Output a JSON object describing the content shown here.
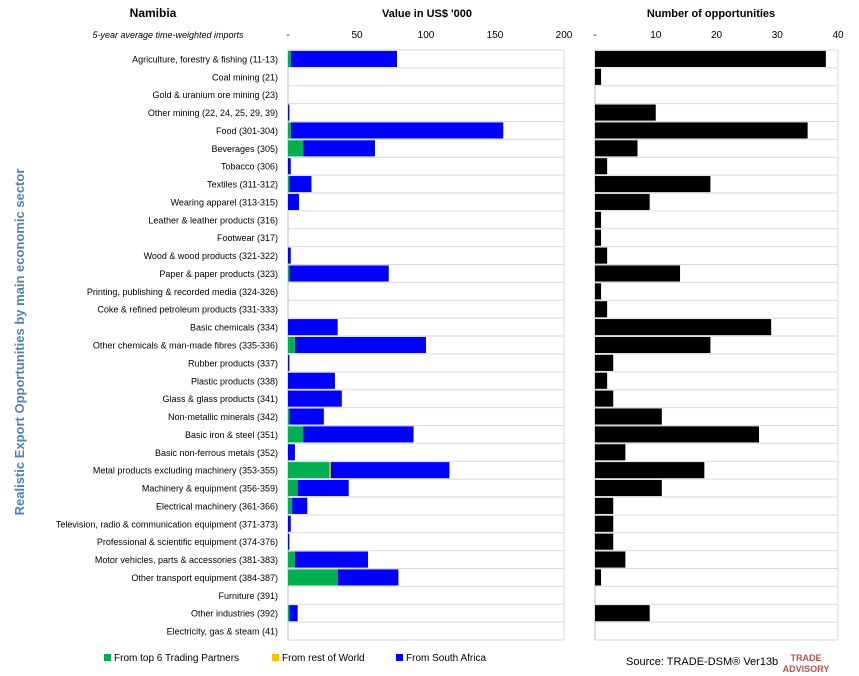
{
  "country": "Namibia",
  "subtitle": "5-year average time-weighted imports",
  "y_axis_title": "Realistic Export Opportunities by main economic sector",
  "source": "Source: TRADE-DSM®  Ver13b",
  "logo_text": [
    "TRADE",
    "ADVISORY"
  ],
  "colors": {
    "top6": "#00B050",
    "rest": "#FFC000",
    "sa": "#0000FF",
    "opps": "#000000",
    "grid": "#D9D9D9",
    "axis_title": "#4F81BD",
    "logo": "#C0504D"
  },
  "chart_data": [
    {
      "type": "bar",
      "orientation": "horizontal",
      "stacked": true,
      "title": "Value in US$ '000",
      "xlim": [
        0,
        200
      ],
      "xticks": [
        "-",
        "50",
        "100",
        "150",
        "200"
      ],
      "grid": true,
      "legend_position": "bottom",
      "categories": [
        "Agriculture, forestry & fishing (11-13)",
        "Coal mining (21)",
        "Gold & uranium ore mining (23)",
        "Other mining (22, 24, 25, 29, 39)",
        "Food (301-304)",
        "Beverages (305)",
        "Tobacco (306)",
        "Textiles (311-312)",
        "Wearing apparel (313-315)",
        "Leather & leather products (316)",
        "Footwear (317)",
        "Wood & wood products (321-322)",
        "Paper & paper products (323)",
        "Printing, publishing & recorded media (324-326)",
        "Coke & refined petroleum products (331-333)",
        "Basic chemicals (334)",
        "Other chemicals & man-made fibres (335-336)",
        "Rubber products (337)",
        "Plastic products (338)",
        "Glass & glass products (341)",
        "Non-metallic minerals (342)",
        "Basic iron & steel (351)",
        "Basic non-ferrous metals (352)",
        "Metal products excluding machinery (353-355)",
        "Machinery & equipment (356-359)",
        "Electrical machinery (361-366)",
        "Television, radio & communication equipment (371-373)",
        "Professional & scientific equipment (374-376)",
        "Motor vehicles, parts & accessories (381-383)",
        "Other transport equipment (384-387)",
        "Furniture (391)",
        "Other industries (392)",
        "Electricity, gas & steam (41)"
      ],
      "series": [
        {
          "name": "From top 6 Trading Partners",
          "color_key": "top6",
          "values": [
            2,
            0,
            0,
            0,
            2,
            11,
            0,
            1,
            0,
            0,
            0,
            0,
            1,
            0,
            0,
            0,
            5,
            0,
            0,
            0,
            1,
            11,
            0,
            30,
            7,
            3,
            0,
            0,
            5,
            36,
            0,
            1,
            0
          ]
        },
        {
          "name": "From rest of World",
          "color_key": "rest",
          "values": [
            0,
            0,
            0,
            0,
            0,
            0,
            0,
            0,
            0,
            0,
            0,
            0,
            0,
            0,
            0,
            0,
            0,
            0,
            0,
            0,
            0,
            0,
            0,
            1,
            0,
            0,
            0,
            0,
            0,
            0,
            0,
            0,
            0
          ]
        },
        {
          "name": "From South Africa",
          "color_key": "sa",
          "values": [
            77,
            0,
            0,
            1,
            154,
            52,
            2,
            16,
            8,
            0,
            0,
            2,
            72,
            0,
            0,
            36,
            95,
            1,
            34,
            39,
            25,
            80,
            5,
            86,
            37,
            11,
            2,
            1,
            53,
            44,
            0,
            6,
            0
          ]
        }
      ]
    },
    {
      "type": "bar",
      "orientation": "horizontal",
      "title": "Number of opportunities",
      "xlim": [
        0,
        40
      ],
      "xticks": [
        "-",
        "10",
        "20",
        "30",
        "40"
      ],
      "grid": true,
      "values": [
        38,
        1,
        0,
        10,
        35,
        7,
        2,
        19,
        9,
        1,
        1,
        2,
        14,
        1,
        2,
        29,
        19,
        3,
        2,
        3,
        11,
        27,
        5,
        18,
        11,
        3,
        3,
        3,
        5,
        1,
        0,
        9,
        0
      ]
    }
  ]
}
